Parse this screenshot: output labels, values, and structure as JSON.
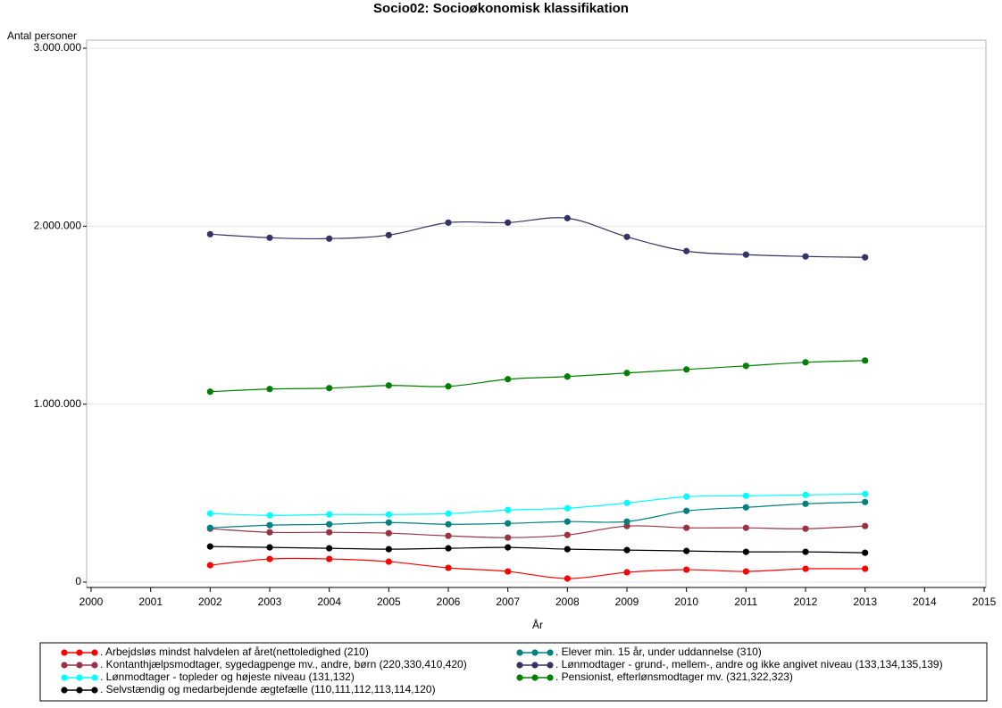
{
  "chart_data": {
    "type": "line",
    "title": "Socio02: Socioøkonomisk klassifikation",
    "y_label": "Antal personer",
    "x_label": "År",
    "x": [
      2002,
      2003,
      2004,
      2005,
      2006,
      2007,
      2008,
      2009,
      2010,
      2011,
      2012,
      2013
    ],
    "xlim": [
      2000,
      2015
    ],
    "xticks": [
      2000,
      2001,
      2002,
      2003,
      2004,
      2005,
      2006,
      2007,
      2008,
      2009,
      2010,
      2011,
      2012,
      2013,
      2014,
      2015
    ],
    "ylim": [
      0,
      3000000
    ],
    "yticks": [
      0,
      {
        "value": 1000000,
        "label": "1.000.000"
      },
      {
        "value": 2000000,
        "label": "2.000.000"
      },
      {
        "value": 3000000,
        "label": "3.000.000"
      }
    ],
    "grid": true,
    "legend": "bottom",
    "series": [
      {
        "name": ". Arbejdsløs mindst halvdelen af året(nettoledighed (210)",
        "color": "#ff0000",
        "values": [
          95000,
          130000,
          130000,
          115000,
          80000,
          60000,
          20000,
          55000,
          70000,
          60000,
          75000,
          75000
        ]
      },
      {
        "name": ". Kontanthjælpsmodtager, sygedagpenge mv., andre, børn (220,330,410,420)",
        "color": "#993344",
        "values": [
          300000,
          280000,
          280000,
          275000,
          260000,
          250000,
          265000,
          315000,
          305000,
          305000,
          300000,
          315000
        ]
      },
      {
        "name": ". Lønmodtager - topleder og højeste niveau (131,132)",
        "color": "#00ffff",
        "values": [
          385000,
          375000,
          380000,
          380000,
          385000,
          405000,
          415000,
          445000,
          480000,
          485000,
          490000,
          495000
        ]
      },
      {
        "name": ". Selvstændig og medarbejdende ægtefælle (110,111,112,113,114,120)",
        "color": "#000000",
        "values": [
          200000,
          195000,
          190000,
          185000,
          190000,
          195000,
          185000,
          180000,
          175000,
          170000,
          170000,
          165000
        ]
      },
      {
        "name": ". Elever min. 15 år, under uddannelse (310)",
        "color": "#008080",
        "values": [
          305000,
          320000,
          325000,
          335000,
          325000,
          330000,
          340000,
          340000,
          400000,
          420000,
          440000,
          450000
        ]
      },
      {
        "name": ". Lønmodtager - grund-, mellem-, andre og ikke angivet niveau (133,134,135,139)",
        "color": "#333366",
        "values": [
          1955000,
          1935000,
          1930000,
          1950000,
          2020000,
          2020000,
          2045000,
          1940000,
          1860000,
          1840000,
          1830000,
          1825000
        ]
      },
      {
        "name": ". Pensionist, efterlønsmodtager mv. (321,322,323)",
        "color": "#008000",
        "values": [
          1070000,
          1085000,
          1090000,
          1105000,
          1100000,
          1140000,
          1155000,
          1175000,
          1195000,
          1215000,
          1235000,
          1245000
        ]
      }
    ]
  }
}
